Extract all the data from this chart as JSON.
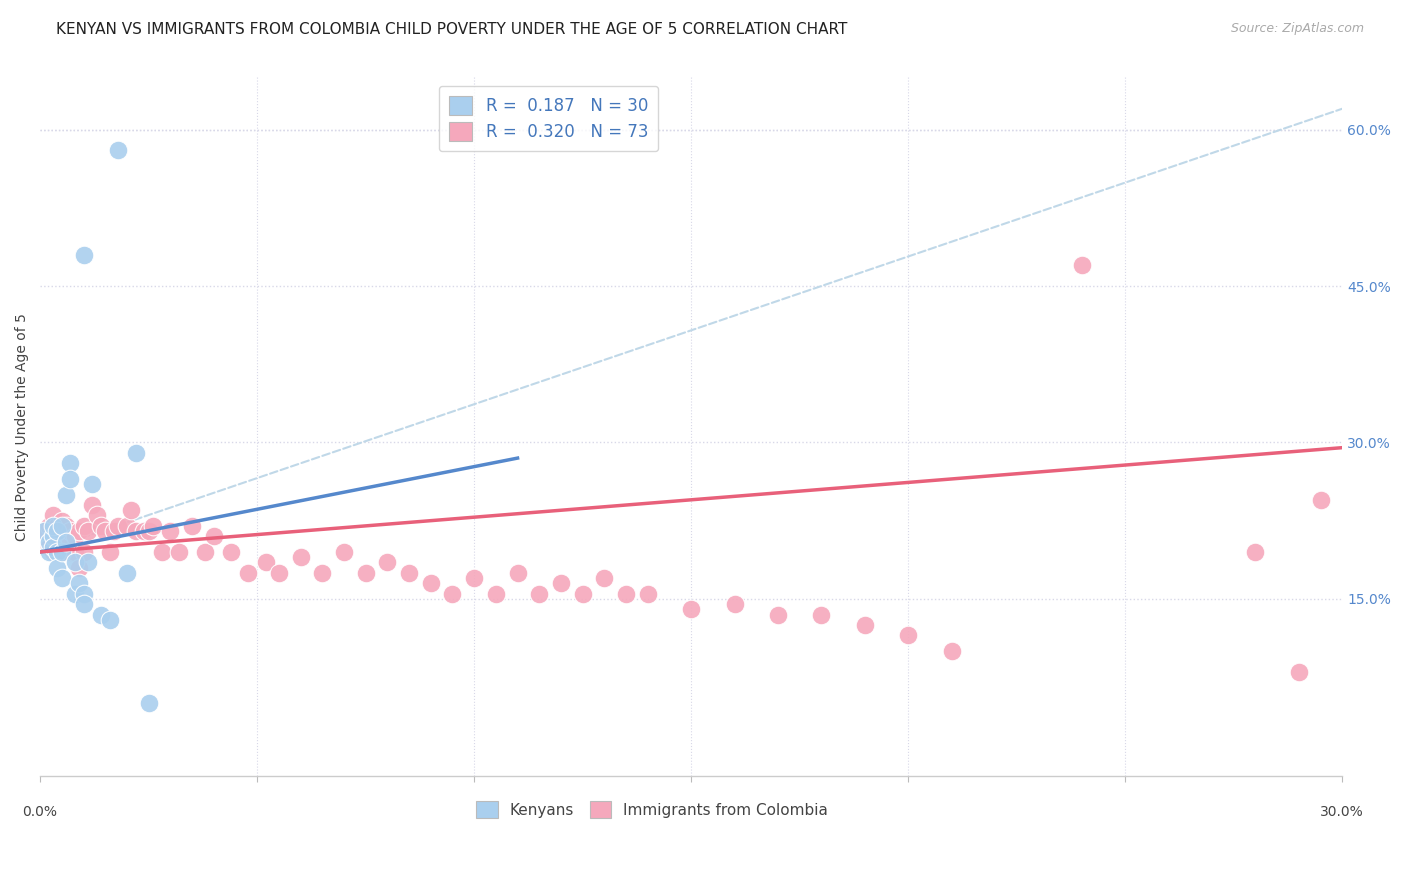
{
  "title": "KENYAN VS IMMIGRANTS FROM COLOMBIA CHILD POVERTY UNDER THE AGE OF 5 CORRELATION CHART",
  "source": "Source: ZipAtlas.com",
  "ylabel": "Child Poverty Under the Age of 5",
  "xlim": [
    0.0,
    0.3
  ],
  "ylim": [
    -0.02,
    0.65
  ],
  "ytick_vals": [
    0.15,
    0.3,
    0.45,
    0.6
  ],
  "ytick_labels": [
    "15.0%",
    "30.0%",
    "45.0%",
    "60.0%"
  ],
  "kenyan_color": "#aacfee",
  "colombia_color": "#f5a8bc",
  "kenyan_line_color": "#5588cc",
  "colombia_line_color": "#e8607a",
  "dashed_line_color": "#c0d8e8",
  "background_color": "#ffffff",
  "grid_color": "#d8d8e8",
  "title_fontsize": 11,
  "label_fontsize": 10,
  "tick_fontsize": 10,
  "source_fontsize": 9,
  "legend_fontsize": 12,
  "kenyan_x": [
    0.001,
    0.002,
    0.002,
    0.003,
    0.003,
    0.003,
    0.004,
    0.004,
    0.004,
    0.005,
    0.005,
    0.005,
    0.006,
    0.006,
    0.007,
    0.007,
    0.008,
    0.008,
    0.009,
    0.01,
    0.01,
    0.011,
    0.012,
    0.014,
    0.016,
    0.02,
    0.022,
    0.018,
    0.01,
    0.025
  ],
  "kenyan_y": [
    0.215,
    0.195,
    0.205,
    0.21,
    0.2,
    0.22,
    0.215,
    0.195,
    0.18,
    0.22,
    0.195,
    0.17,
    0.205,
    0.25,
    0.28,
    0.265,
    0.185,
    0.155,
    0.165,
    0.155,
    0.145,
    0.185,
    0.26,
    0.135,
    0.13,
    0.175,
    0.29,
    0.58,
    0.48,
    0.05
  ],
  "colombia_x": [
    0.001,
    0.002,
    0.002,
    0.003,
    0.003,
    0.003,
    0.004,
    0.004,
    0.005,
    0.005,
    0.005,
    0.006,
    0.006,
    0.007,
    0.007,
    0.008,
    0.008,
    0.009,
    0.009,
    0.01,
    0.01,
    0.011,
    0.012,
    0.013,
    0.014,
    0.015,
    0.016,
    0.017,
    0.018,
    0.02,
    0.021,
    0.022,
    0.024,
    0.025,
    0.026,
    0.028,
    0.03,
    0.032,
    0.035,
    0.038,
    0.04,
    0.044,
    0.048,
    0.052,
    0.055,
    0.06,
    0.065,
    0.07,
    0.075,
    0.08,
    0.085,
    0.09,
    0.095,
    0.1,
    0.105,
    0.11,
    0.115,
    0.12,
    0.125,
    0.13,
    0.135,
    0.14,
    0.15,
    0.16,
    0.17,
    0.18,
    0.19,
    0.2,
    0.21,
    0.24,
    0.28,
    0.29,
    0.295
  ],
  "colombia_y": [
    0.215,
    0.2,
    0.22,
    0.195,
    0.215,
    0.23,
    0.205,
    0.22,
    0.215,
    0.195,
    0.225,
    0.2,
    0.22,
    0.215,
    0.195,
    0.21,
    0.195,
    0.215,
    0.18,
    0.22,
    0.195,
    0.215,
    0.24,
    0.23,
    0.22,
    0.215,
    0.195,
    0.215,
    0.22,
    0.22,
    0.235,
    0.215,
    0.215,
    0.215,
    0.22,
    0.195,
    0.215,
    0.195,
    0.22,
    0.195,
    0.21,
    0.195,
    0.175,
    0.185,
    0.175,
    0.19,
    0.175,
    0.195,
    0.175,
    0.185,
    0.175,
    0.165,
    0.155,
    0.17,
    0.155,
    0.175,
    0.155,
    0.165,
    0.155,
    0.17,
    0.155,
    0.155,
    0.14,
    0.145,
    0.135,
    0.135,
    0.125,
    0.115,
    0.1,
    0.47,
    0.195,
    0.08,
    0.245
  ],
  "kenyan_line_x": [
    0.0,
    0.11
  ],
  "kenyan_line_y": [
    0.195,
    0.285
  ],
  "colombia_line_x": [
    0.0,
    0.3
  ],
  "colombia_line_y": [
    0.195,
    0.295
  ],
  "dash_line_x": [
    0.0,
    0.3
  ],
  "dash_line_y": [
    0.195,
    0.62
  ]
}
